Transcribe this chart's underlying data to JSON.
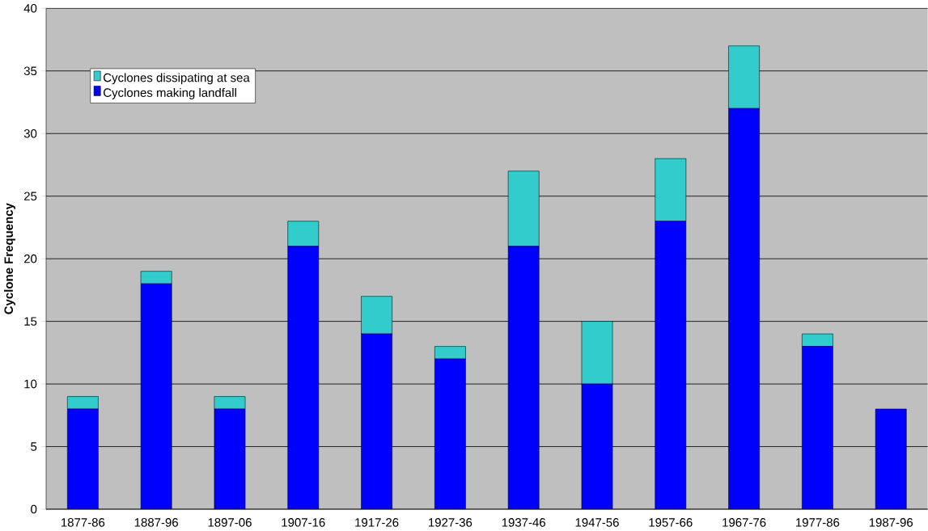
{
  "chart_data": {
    "type": "bar",
    "stacked": true,
    "ylabel": "Cyclone Frequency",
    "categories": [
      "1877-86",
      "1887-96",
      "1897-06",
      "1907-16",
      "1917-26",
      "1927-36",
      "1937-46",
      "1947-56",
      "1957-66",
      "1967-76",
      "1977-86",
      "1987-96"
    ],
    "series": [
      {
        "name": "Cyclones making landfall",
        "color": "#0000ff",
        "values": [
          8,
          18,
          8,
          21,
          14,
          12,
          21,
          10,
          23,
          32,
          13,
          8
        ]
      },
      {
        "name": "Cyclones dissipating at sea",
        "color": "#33cccc",
        "values": [
          1,
          1,
          1,
          2,
          3,
          1,
          6,
          5,
          5,
          5,
          1,
          0
        ]
      }
    ],
    "ylim": [
      0,
      40
    ],
    "yticks": [
      0,
      5,
      10,
      15,
      20,
      25,
      30,
      35,
      40
    ],
    "grid": "y",
    "legend": "top left"
  }
}
